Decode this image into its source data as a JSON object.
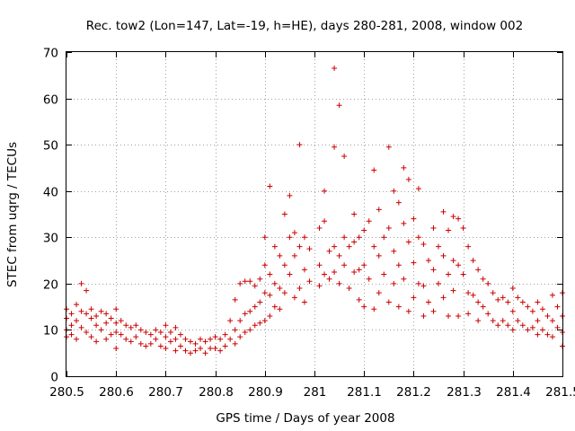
{
  "chart_data": {
    "type": "scatter",
    "title": "Rec. tow2 (Lon=147, Lat=-19, h=HE), days 280-281, 2008, window 002",
    "xlabel": "GPS time / Days of year 2008",
    "ylabel": "STEC from uqrg / TECUs",
    "xlim": [
      280.5,
      281.5
    ],
    "ylim": [
      0,
      70
    ],
    "xticks": [
      "280.5",
      "280.6",
      "280.7",
      "280.8",
      "280.9",
      "281",
      "281.1",
      "281.2",
      "281.3",
      "281.4",
      "281.5"
    ],
    "yticks": [
      "0",
      "10",
      "20",
      "30",
      "40",
      "50",
      "60",
      "70"
    ],
    "grid": true,
    "legend": "none",
    "marker": "plus",
    "color": "#cc0000",
    "series": [
      {
        "points": [
          [
            280.5,
            14.5
          ],
          [
            280.5,
            12.5
          ],
          [
            280.5,
            10.0
          ],
          [
            280.5,
            8.5
          ],
          [
            280.51,
            13.5
          ],
          [
            280.51,
            11.0
          ],
          [
            280.51,
            9.0
          ],
          [
            280.52,
            15.5
          ],
          [
            280.52,
            12.0
          ],
          [
            280.52,
            8.0
          ],
          [
            280.53,
            20.0
          ],
          [
            280.53,
            14.0
          ],
          [
            280.53,
            10.5
          ],
          [
            280.54,
            18.5
          ],
          [
            280.54,
            13.5
          ],
          [
            280.54,
            9.5
          ],
          [
            280.55,
            14.5
          ],
          [
            280.55,
            12.5
          ],
          [
            280.55,
            8.5
          ],
          [
            280.56,
            13.0
          ],
          [
            280.56,
            11.0
          ],
          [
            280.56,
            7.5
          ],
          [
            280.57,
            14.0
          ],
          [
            280.57,
            10.0
          ],
          [
            280.58,
            13.5
          ],
          [
            280.58,
            11.5
          ],
          [
            280.58,
            8.0
          ],
          [
            280.59,
            12.5
          ],
          [
            280.59,
            9.0
          ],
          [
            280.6,
            14.5
          ],
          [
            280.6,
            11.5
          ],
          [
            280.6,
            9.5
          ],
          [
            280.6,
            6.0
          ],
          [
            280.61,
            12.0
          ],
          [
            280.61,
            9.0
          ],
          [
            280.62,
            11.0
          ],
          [
            280.62,
            8.0
          ],
          [
            280.63,
            10.5
          ],
          [
            280.63,
            7.5
          ],
          [
            280.64,
            11.0
          ],
          [
            280.64,
            8.5
          ],
          [
            280.65,
            10.0
          ],
          [
            280.65,
            7.0
          ],
          [
            280.66,
            9.5
          ],
          [
            280.66,
            6.5
          ],
          [
            280.67,
            9.0
          ],
          [
            280.67,
            7.0
          ],
          [
            280.68,
            10.0
          ],
          [
            280.68,
            8.0
          ],
          [
            280.69,
            9.5
          ],
          [
            280.69,
            6.5
          ],
          [
            280.7,
            11.0
          ],
          [
            280.7,
            8.5
          ],
          [
            280.7,
            6.0
          ],
          [
            280.71,
            9.5
          ],
          [
            280.71,
            7.5
          ],
          [
            280.72,
            10.5
          ],
          [
            280.72,
            8.0
          ],
          [
            280.72,
            5.5
          ],
          [
            280.73,
            9.0
          ],
          [
            280.73,
            6.5
          ],
          [
            280.74,
            8.0
          ],
          [
            280.74,
            5.5
          ],
          [
            280.75,
            7.5
          ],
          [
            280.75,
            5.0
          ],
          [
            280.76,
            7.0
          ],
          [
            280.76,
            5.5
          ],
          [
            280.77,
            8.0
          ],
          [
            280.77,
            6.0
          ],
          [
            280.78,
            7.5
          ],
          [
            280.78,
            5.0
          ],
          [
            280.79,
            8.0
          ],
          [
            280.79,
            6.0
          ],
          [
            280.8,
            8.5
          ],
          [
            280.8,
            6.0
          ],
          [
            280.81,
            8.0
          ],
          [
            280.81,
            5.5
          ],
          [
            280.82,
            9.0
          ],
          [
            280.82,
            6.5
          ],
          [
            280.83,
            12.0
          ],
          [
            280.83,
            8.0
          ],
          [
            280.84,
            16.5
          ],
          [
            280.84,
            10.0
          ],
          [
            280.84,
            7.0
          ],
          [
            280.85,
            20.0
          ],
          [
            280.85,
            12.0
          ],
          [
            280.85,
            8.5
          ],
          [
            280.86,
            20.5
          ],
          [
            280.86,
            13.5
          ],
          [
            280.86,
            9.5
          ],
          [
            280.87,
            20.5
          ],
          [
            280.87,
            14.0
          ],
          [
            280.87,
            10.0
          ],
          [
            280.88,
            19.5
          ],
          [
            280.88,
            15.0
          ],
          [
            280.88,
            11.0
          ],
          [
            280.89,
            21.0
          ],
          [
            280.89,
            16.0
          ],
          [
            280.89,
            11.5
          ],
          [
            280.9,
            30.0
          ],
          [
            280.9,
            24.0
          ],
          [
            280.9,
            18.0
          ],
          [
            280.9,
            12.0
          ],
          [
            280.91,
            41.0
          ],
          [
            280.91,
            22.0
          ],
          [
            280.91,
            17.5
          ],
          [
            280.91,
            13.0
          ],
          [
            280.92,
            28.0
          ],
          [
            280.92,
            20.0
          ],
          [
            280.92,
            15.0
          ],
          [
            280.93,
            26.0
          ],
          [
            280.93,
            19.0
          ],
          [
            280.93,
            14.5
          ],
          [
            280.94,
            35.0
          ],
          [
            280.94,
            24.0
          ],
          [
            280.94,
            18.0
          ],
          [
            280.95,
            39.0
          ],
          [
            280.95,
            30.0
          ],
          [
            280.95,
            22.0
          ],
          [
            280.96,
            31.0
          ],
          [
            280.96,
            26.0
          ],
          [
            280.96,
            17.0
          ],
          [
            280.97,
            50.0
          ],
          [
            280.97,
            28.0
          ],
          [
            280.97,
            19.0
          ],
          [
            280.98,
            30.0
          ],
          [
            280.98,
            23.0
          ],
          [
            280.98,
            16.0
          ],
          [
            280.99,
            27.5
          ],
          [
            280.99,
            20.5
          ],
          [
            281.01,
            32.0
          ],
          [
            281.01,
            24.0
          ],
          [
            281.01,
            19.5
          ],
          [
            281.02,
            40.0
          ],
          [
            281.02,
            33.5
          ],
          [
            281.02,
            22.0
          ],
          [
            281.03,
            27.0
          ],
          [
            281.03,
            21.0
          ],
          [
            281.04,
            66.5
          ],
          [
            281.04,
            49.5
          ],
          [
            281.04,
            28.0
          ],
          [
            281.04,
            22.5
          ],
          [
            281.05,
            58.5
          ],
          [
            281.05,
            26.0
          ],
          [
            281.05,
            20.0
          ],
          [
            281.06,
            47.5
          ],
          [
            281.06,
            30.0
          ],
          [
            281.06,
            24.0
          ],
          [
            281.07,
            28.0
          ],
          [
            281.07,
            19.0
          ],
          [
            281.08,
            35.0
          ],
          [
            281.08,
            29.0
          ],
          [
            281.08,
            22.5
          ],
          [
            281.09,
            30.0
          ],
          [
            281.09,
            23.0
          ],
          [
            281.09,
            16.5
          ],
          [
            281.1,
            31.5
          ],
          [
            281.1,
            24.0
          ],
          [
            281.1,
            15.0
          ],
          [
            281.11,
            33.5
          ],
          [
            281.11,
            21.0
          ],
          [
            281.12,
            44.5
          ],
          [
            281.12,
            28.0
          ],
          [
            281.12,
            14.5
          ],
          [
            281.13,
            36.0
          ],
          [
            281.13,
            26.0
          ],
          [
            281.13,
            18.0
          ],
          [
            281.14,
            30.0
          ],
          [
            281.14,
            22.0
          ],
          [
            281.15,
            49.5
          ],
          [
            281.15,
            32.0
          ],
          [
            281.15,
            16.0
          ],
          [
            281.16,
            40.0
          ],
          [
            281.16,
            27.0
          ],
          [
            281.16,
            20.0
          ],
          [
            281.17,
            37.5
          ],
          [
            281.17,
            24.0
          ],
          [
            281.17,
            15.0
          ],
          [
            281.18,
            45.0
          ],
          [
            281.18,
            33.0
          ],
          [
            281.18,
            21.0
          ],
          [
            281.19,
            42.5
          ],
          [
            281.19,
            29.0
          ],
          [
            281.19,
            14.0
          ],
          [
            281.2,
            34.0
          ],
          [
            281.2,
            24.5
          ],
          [
            281.2,
            17.0
          ],
          [
            281.21,
            40.5
          ],
          [
            281.21,
            30.0
          ],
          [
            281.21,
            20.0
          ],
          [
            281.22,
            28.5
          ],
          [
            281.22,
            19.5
          ],
          [
            281.22,
            13.0
          ],
          [
            281.23,
            25.0
          ],
          [
            281.23,
            16.0
          ],
          [
            281.24,
            32.0
          ],
          [
            281.24,
            23.0
          ],
          [
            281.24,
            14.0
          ],
          [
            281.25,
            28.0
          ],
          [
            281.25,
            20.0
          ],
          [
            281.26,
            35.5
          ],
          [
            281.26,
            26.0
          ],
          [
            281.26,
            17.0
          ],
          [
            281.27,
            31.5
          ],
          [
            281.27,
            22.0
          ],
          [
            281.27,
            13.0
          ],
          [
            281.28,
            34.5
          ],
          [
            281.28,
            25.0
          ],
          [
            281.28,
            18.5
          ],
          [
            281.29,
            34.0
          ],
          [
            281.29,
            24.0
          ],
          [
            281.29,
            13.0
          ],
          [
            281.3,
            32.0
          ],
          [
            281.3,
            22.0
          ],
          [
            281.31,
            28.0
          ],
          [
            281.31,
            18.0
          ],
          [
            281.31,
            13.5
          ],
          [
            281.32,
            25.0
          ],
          [
            281.32,
            17.5
          ],
          [
            281.33,
            23.0
          ],
          [
            281.33,
            16.0
          ],
          [
            281.33,
            12.0
          ],
          [
            281.34,
            21.0
          ],
          [
            281.34,
            15.0
          ],
          [
            281.35,
            20.0
          ],
          [
            281.35,
            13.5
          ],
          [
            281.36,
            18.0
          ],
          [
            281.36,
            12.0
          ],
          [
            281.37,
            16.5
          ],
          [
            281.37,
            11.0
          ],
          [
            281.38,
            17.0
          ],
          [
            281.38,
            12.0
          ],
          [
            281.39,
            16.0
          ],
          [
            281.39,
            11.0
          ],
          [
            281.4,
            19.0
          ],
          [
            281.4,
            14.0
          ],
          [
            281.4,
            10.0
          ],
          [
            281.41,
            17.0
          ],
          [
            281.41,
            12.0
          ],
          [
            281.42,
            16.0
          ],
          [
            281.42,
            11.0
          ],
          [
            281.43,
            15.0
          ],
          [
            281.43,
            10.0
          ],
          [
            281.44,
            14.0
          ],
          [
            281.44,
            10.5
          ],
          [
            281.45,
            16.0
          ],
          [
            281.45,
            12.0
          ],
          [
            281.45,
            9.0
          ],
          [
            281.46,
            14.5
          ],
          [
            281.46,
            10.0
          ],
          [
            281.47,
            13.0
          ],
          [
            281.47,
            9.0
          ],
          [
            281.48,
            17.5
          ],
          [
            281.48,
            12.0
          ],
          [
            281.48,
            8.5
          ],
          [
            281.49,
            15.0
          ],
          [
            281.49,
            10.5
          ],
          [
            281.5,
            18.0
          ],
          [
            281.5,
            13.0
          ],
          [
            281.5,
            9.5
          ],
          [
            281.5,
            6.5
          ]
        ]
      }
    ]
  }
}
